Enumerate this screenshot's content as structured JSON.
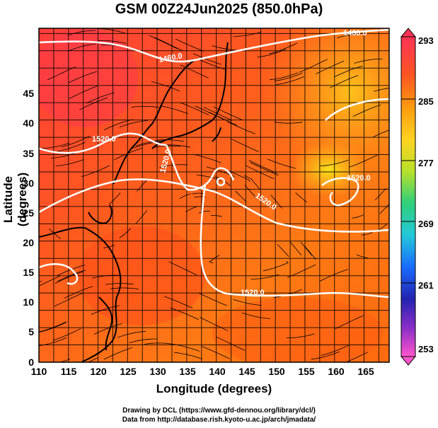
{
  "title": "GSM 00Z24Jun2025 (850.0hPa)",
  "x_axis": {
    "label": "Longitude (degrees)",
    "ticks": [
      "110",
      "115",
      "120",
      "125",
      "130",
      "135",
      "140",
      "145",
      "150",
      "155",
      "160",
      "165"
    ]
  },
  "y_axis": {
    "label": "Latitude  (degrees)",
    "ticks": [
      "0",
      "5",
      "10",
      "15",
      "20",
      "25",
      "30",
      "35",
      "40",
      "45"
    ]
  },
  "colorbar": {
    "ticks": [
      "293",
      "285",
      "277",
      "269",
      "261",
      "253"
    ],
    "colors": [
      "#ff3355",
      "#ff7a1a",
      "#ffd21f",
      "#9be12d",
      "#2ec9c9",
      "#1a6cff",
      "#2020aa",
      "#ff55cc"
    ]
  },
  "contour_labels": [
    "1460.0",
    "1520.0",
    "1520.0",
    "1520.0",
    "1520.0",
    "1520.0",
    "1460.0"
  ],
  "credits": [
    "Drawing by DCL (https://www.gfd-dennou.org/library/dcl/)",
    "Data from http://database.rish.kyoto-u.ac.jp/arch/jmadata/"
  ]
}
